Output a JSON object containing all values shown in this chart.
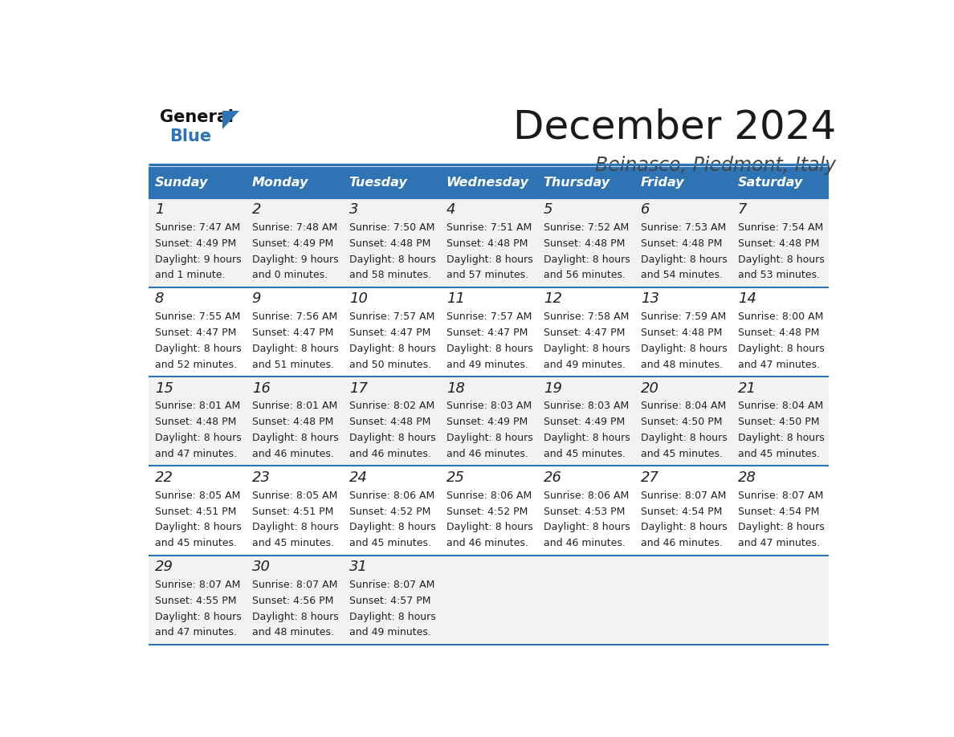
{
  "title": "December 2024",
  "subtitle": "Beinasco, Piedmont, Italy",
  "header_bg": "#2e74b5",
  "header_text": "#ffffff",
  "row_bg_even": "#f2f2f2",
  "row_bg_odd": "#ffffff",
  "border_color": "#2e74b5",
  "text_color": "#222222",
  "days_of_week": [
    "Sunday",
    "Monday",
    "Tuesday",
    "Wednesday",
    "Thursday",
    "Friday",
    "Saturday"
  ],
  "weeks": [
    [
      {
        "day": 1,
        "sunrise": "7:47 AM",
        "sunset": "4:49 PM",
        "daylight_line1": "9 hours",
        "daylight_line2": "and 1 minute."
      },
      {
        "day": 2,
        "sunrise": "7:48 AM",
        "sunset": "4:49 PM",
        "daylight_line1": "9 hours",
        "daylight_line2": "and 0 minutes."
      },
      {
        "day": 3,
        "sunrise": "7:50 AM",
        "sunset": "4:48 PM",
        "daylight_line1": "8 hours",
        "daylight_line2": "and 58 minutes."
      },
      {
        "day": 4,
        "sunrise": "7:51 AM",
        "sunset": "4:48 PM",
        "daylight_line1": "8 hours",
        "daylight_line2": "and 57 minutes."
      },
      {
        "day": 5,
        "sunrise": "7:52 AM",
        "sunset": "4:48 PM",
        "daylight_line1": "8 hours",
        "daylight_line2": "and 56 minutes."
      },
      {
        "day": 6,
        "sunrise": "7:53 AM",
        "sunset": "4:48 PM",
        "daylight_line1": "8 hours",
        "daylight_line2": "and 54 minutes."
      },
      {
        "day": 7,
        "sunrise": "7:54 AM",
        "sunset": "4:48 PM",
        "daylight_line1": "8 hours",
        "daylight_line2": "and 53 minutes."
      }
    ],
    [
      {
        "day": 8,
        "sunrise": "7:55 AM",
        "sunset": "4:47 PM",
        "daylight_line1": "8 hours",
        "daylight_line2": "and 52 minutes."
      },
      {
        "day": 9,
        "sunrise": "7:56 AM",
        "sunset": "4:47 PM",
        "daylight_line1": "8 hours",
        "daylight_line2": "and 51 minutes."
      },
      {
        "day": 10,
        "sunrise": "7:57 AM",
        "sunset": "4:47 PM",
        "daylight_line1": "8 hours",
        "daylight_line2": "and 50 minutes."
      },
      {
        "day": 11,
        "sunrise": "7:57 AM",
        "sunset": "4:47 PM",
        "daylight_line1": "8 hours",
        "daylight_line2": "and 49 minutes."
      },
      {
        "day": 12,
        "sunrise": "7:58 AM",
        "sunset": "4:47 PM",
        "daylight_line1": "8 hours",
        "daylight_line2": "and 49 minutes."
      },
      {
        "day": 13,
        "sunrise": "7:59 AM",
        "sunset": "4:48 PM",
        "daylight_line1": "8 hours",
        "daylight_line2": "and 48 minutes."
      },
      {
        "day": 14,
        "sunrise": "8:00 AM",
        "sunset": "4:48 PM",
        "daylight_line1": "8 hours",
        "daylight_line2": "and 47 minutes."
      }
    ],
    [
      {
        "day": 15,
        "sunrise": "8:01 AM",
        "sunset": "4:48 PM",
        "daylight_line1": "8 hours",
        "daylight_line2": "and 47 minutes."
      },
      {
        "day": 16,
        "sunrise": "8:01 AM",
        "sunset": "4:48 PM",
        "daylight_line1": "8 hours",
        "daylight_line2": "and 46 minutes."
      },
      {
        "day": 17,
        "sunrise": "8:02 AM",
        "sunset": "4:48 PM",
        "daylight_line1": "8 hours",
        "daylight_line2": "and 46 minutes."
      },
      {
        "day": 18,
        "sunrise": "8:03 AM",
        "sunset": "4:49 PM",
        "daylight_line1": "8 hours",
        "daylight_line2": "and 46 minutes."
      },
      {
        "day": 19,
        "sunrise": "8:03 AM",
        "sunset": "4:49 PM",
        "daylight_line1": "8 hours",
        "daylight_line2": "and 45 minutes."
      },
      {
        "day": 20,
        "sunrise": "8:04 AM",
        "sunset": "4:50 PM",
        "daylight_line1": "8 hours",
        "daylight_line2": "and 45 minutes."
      },
      {
        "day": 21,
        "sunrise": "8:04 AM",
        "sunset": "4:50 PM",
        "daylight_line1": "8 hours",
        "daylight_line2": "and 45 minutes."
      }
    ],
    [
      {
        "day": 22,
        "sunrise": "8:05 AM",
        "sunset": "4:51 PM",
        "daylight_line1": "8 hours",
        "daylight_line2": "and 45 minutes."
      },
      {
        "day": 23,
        "sunrise": "8:05 AM",
        "sunset": "4:51 PM",
        "daylight_line1": "8 hours",
        "daylight_line2": "and 45 minutes."
      },
      {
        "day": 24,
        "sunrise": "8:06 AM",
        "sunset": "4:52 PM",
        "daylight_line1": "8 hours",
        "daylight_line2": "and 45 minutes."
      },
      {
        "day": 25,
        "sunrise": "8:06 AM",
        "sunset": "4:52 PM",
        "daylight_line1": "8 hours",
        "daylight_line2": "and 46 minutes."
      },
      {
        "day": 26,
        "sunrise": "8:06 AM",
        "sunset": "4:53 PM",
        "daylight_line1": "8 hours",
        "daylight_line2": "and 46 minutes."
      },
      {
        "day": 27,
        "sunrise": "8:07 AM",
        "sunset": "4:54 PM",
        "daylight_line1": "8 hours",
        "daylight_line2": "and 46 minutes."
      },
      {
        "day": 28,
        "sunrise": "8:07 AM",
        "sunset": "4:54 PM",
        "daylight_line1": "8 hours",
        "daylight_line2": "and 47 minutes."
      }
    ],
    [
      {
        "day": 29,
        "sunrise": "8:07 AM",
        "sunset": "4:55 PM",
        "daylight_line1": "8 hours",
        "daylight_line2": "and 47 minutes."
      },
      {
        "day": 30,
        "sunrise": "8:07 AM",
        "sunset": "4:56 PM",
        "daylight_line1": "8 hours",
        "daylight_line2": "and 48 minutes."
      },
      {
        "day": 31,
        "sunrise": "8:07 AM",
        "sunset": "4:57 PM",
        "daylight_line1": "8 hours",
        "daylight_line2": "and 49 minutes."
      },
      null,
      null,
      null,
      null
    ]
  ]
}
